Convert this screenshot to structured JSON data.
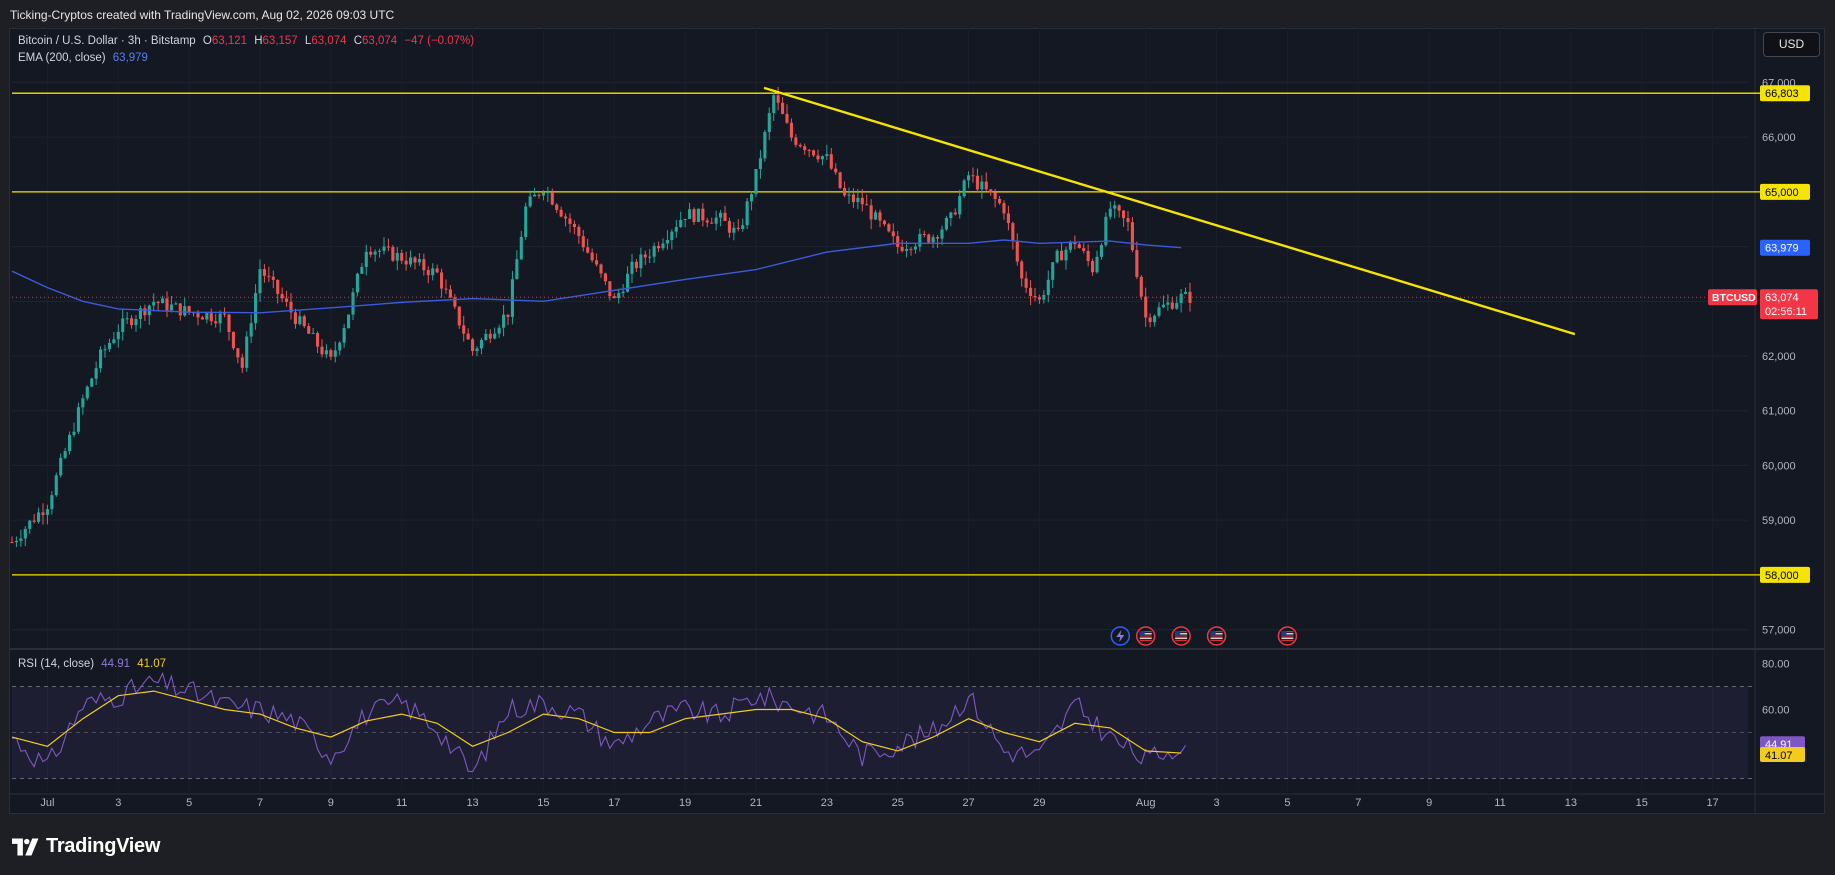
{
  "header": {
    "attribution": "Ticking-Cryptos created with TradingView.com, Aug 02, 2026 09:03 UTC"
  },
  "legend": {
    "symbol_desc": "Bitcoin / U.S. Dollar · 3h · Bitstamp",
    "open_label": "O",
    "open_value": "63,121",
    "high_label": "H",
    "high_value": "63,157",
    "low_label": "L",
    "low_value": "63,074",
    "close_label": "C",
    "close_value": "63,074",
    "change": "−47 (−0.07%)",
    "ema_name": "EMA (200, close)",
    "ema_value": "63,979"
  },
  "rsi_legend": {
    "name": "RSI (14, close)",
    "rsi_value": "44.91",
    "ma_value": "41.07"
  },
  "toolbar": {
    "currency_button": "USD"
  },
  "price_axis": {
    "ticks": [
      "67,000",
      "66,000",
      "65,000",
      "64,000",
      "63,000",
      "62,000",
      "61,000",
      "60,000",
      "59,000",
      "58,000",
      "57,000"
    ],
    "badges": {
      "level_66803": "66,803",
      "level_65000": "65,000",
      "ema": "63,979",
      "symbol": "BTCUSD",
      "last_price": "63,074",
      "countdown": "02:56:11",
      "level_58000": "58,000"
    }
  },
  "rsi_axis": {
    "ticks": [
      "80.00",
      "60.00"
    ],
    "badges": {
      "rsi": "44.91",
      "ma": "41.07"
    }
  },
  "time_axis": {
    "ticks": [
      "Jul",
      "3",
      "5",
      "7",
      "9",
      "11",
      "13",
      "15",
      "17",
      "19",
      "21",
      "23",
      "25",
      "27",
      "29",
      "Aug",
      "3",
      "5",
      "7",
      "9",
      "11",
      "13",
      "15",
      "17"
    ]
  },
  "colors": {
    "up": "#26a69a",
    "down": "#ef5350",
    "level": "#f5e400",
    "trend": "#f5e400",
    "ema": "#3b5bd9",
    "rsi": "#7e57c2",
    "rsi_ma": "#f2cc1c",
    "last_price": "#f23645"
  },
  "chart_data": {
    "type": "candlestick",
    "timeframe": "3h",
    "ylim": [
      56700,
      67300
    ],
    "x_range": [
      "2026-06-30",
      "2026-08-18"
    ],
    "horizontal_levels": [
      66803,
      65000,
      58000
    ],
    "trendline": {
      "start": [
        "2026-07-21",
        66900
      ],
      "end": [
        "2026-08-13",
        62400
      ]
    },
    "last_price": 63074,
    "ema200": {
      "dates": [
        "2026-06-30",
        "2026-07-01",
        "2026-07-02",
        "2026-07-03",
        "2026-07-05",
        "2026-07-07",
        "2026-07-09",
        "2026-07-11",
        "2026-07-13",
        "2026-07-15",
        "2026-07-17",
        "2026-07-19",
        "2026-07-21",
        "2026-07-23",
        "2026-07-25",
        "2026-07-27",
        "2026-07-28",
        "2026-07-29",
        "2026-07-31",
        "2026-08-01",
        "2026-08-02"
      ],
      "values": [
        63550,
        63250,
        63000,
        62860,
        62800,
        62790,
        62880,
        62980,
        63050,
        63000,
        63200,
        63400,
        63580,
        63900,
        64060,
        64060,
        64120,
        64060,
        64100,
        64030,
        63979
      ]
    },
    "price_path": {
      "dates": [
        "2026-06-30",
        "2026-07-01",
        "2026-07-02",
        "2026-07-02",
        "2026-07-03",
        "2026-07-04",
        "2026-07-05",
        "2026-07-06",
        "2026-07-06",
        "2026-07-07",
        "2026-07-08",
        "2026-07-09",
        "2026-07-09",
        "2026-07-10",
        "2026-07-11",
        "2026-07-12",
        "2026-07-13",
        "2026-07-14",
        "2026-07-14",
        "2026-07-15",
        "2026-07-16",
        "2026-07-17",
        "2026-07-17",
        "2026-07-18",
        "2026-07-19",
        "2026-07-20",
        "2026-07-20",
        "2026-07-21",
        "2026-07-21",
        "2026-07-22",
        "2026-07-23",
        "2026-07-23",
        "2026-07-24",
        "2026-07-25",
        "2026-07-26",
        "2026-07-26",
        "2026-07-27",
        "2026-07-28",
        "2026-07-28",
        "2026-07-29",
        "2026-07-29",
        "2026-07-30",
        "2026-07-30",
        "2026-07-31",
        "2026-07-31",
        "2026-08-01",
        "2026-08-01",
        "2026-08-02"
      ],
      "values": [
        58600,
        59300,
        61200,
        62000,
        62500,
        63000,
        62800,
        62700,
        61800,
        63600,
        62700,
        61900,
        62800,
        64000,
        63800,
        63500,
        62100,
        62800,
        64700,
        65100,
        64200,
        63000,
        63600,
        63900,
        64600,
        64500,
        64200,
        65300,
        66750,
        66000,
        65600,
        64900,
        64800,
        64000,
        64200,
        64500,
        65300,
        64700,
        63400,
        63000,
        63800,
        64100,
        63600,
        64700,
        64400,
        62700,
        62900,
        63074
      ]
    }
  },
  "rsi_chart_data": {
    "type": "line",
    "ylim": [
      25,
      85
    ],
    "reference_levels": [
      70,
      50,
      30
    ],
    "rsi": {
      "dates": [
        "2026-06-30",
        "2026-07-01",
        "2026-07-02",
        "2026-07-03",
        "2026-07-04",
        "2026-07-05",
        "2026-07-06",
        "2026-07-07",
        "2026-07-08",
        "2026-07-09",
        "2026-07-10",
        "2026-07-11",
        "2026-07-12",
        "2026-07-13",
        "2026-07-14",
        "2026-07-15",
        "2026-07-16",
        "2026-07-17",
        "2026-07-18",
        "2026-07-19",
        "2026-07-20",
        "2026-07-21",
        "2026-07-22",
        "2026-07-23",
        "2026-07-24",
        "2026-07-25",
        "2026-07-26",
        "2026-07-27",
        "2026-07-28",
        "2026-07-29",
        "2026-07-30",
        "2026-07-31",
        "2026-08-01",
        "2026-08-02"
      ],
      "values": [
        48,
        35,
        62,
        66,
        72,
        68,
        62,
        60,
        55,
        40,
        58,
        63,
        52,
        32,
        60,
        63,
        58,
        44,
        55,
        60,
        57,
        66,
        62,
        57,
        40,
        45,
        50,
        66,
        42,
        40,
        62,
        48,
        38,
        44.91
      ]
    },
    "ma": {
      "dates": [
        "2026-06-30",
        "2026-07-01",
        "2026-07-02",
        "2026-07-03",
        "2026-07-04",
        "2026-07-05",
        "2026-07-06",
        "2026-07-07",
        "2026-07-08",
        "2026-07-09",
        "2026-07-10",
        "2026-07-11",
        "2026-07-12",
        "2026-07-13",
        "2026-07-14",
        "2026-07-15",
        "2026-07-16",
        "2026-07-17",
        "2026-07-18",
        "2026-07-19",
        "2026-07-20",
        "2026-07-21",
        "2026-07-22",
        "2026-07-23",
        "2026-07-24",
        "2026-07-25",
        "2026-07-26",
        "2026-07-27",
        "2026-07-28",
        "2026-07-29",
        "2026-07-30",
        "2026-07-31",
        "2026-08-01",
        "2026-08-02"
      ],
      "values": [
        48,
        44,
        56,
        66,
        68,
        64,
        60,
        58,
        52,
        48,
        55,
        58,
        54,
        44,
        50,
        58,
        56,
        50,
        50,
        56,
        58,
        60,
        60,
        56,
        46,
        42,
        48,
        56,
        50,
        46,
        54,
        52,
        42,
        41.07
      ]
    }
  },
  "event_markers": [
    {
      "date": "2026-07-31",
      "icon": "economic-event-icon"
    },
    {
      "date": "2026-08-01",
      "icon": "us-flag-icon"
    },
    {
      "date": "2026-08-02",
      "icon": "us-flag-icon"
    },
    {
      "date": "2026-08-03",
      "icon": "us-flag-icon"
    },
    {
      "date": "2026-08-05",
      "icon": "us-flag-icon"
    }
  ],
  "branding": {
    "logo_text": "TradingView"
  }
}
